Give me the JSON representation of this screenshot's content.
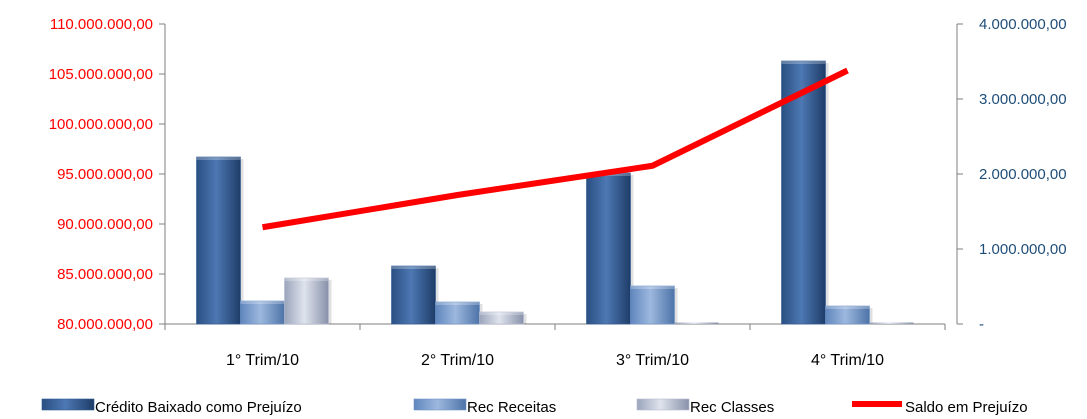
{
  "chart_data": {
    "type": "bar",
    "categories": [
      "1° Trim/10",
      "2° Trim/10",
      "3° Trim/10",
      "4° Trim/10"
    ],
    "series": [
      {
        "name": "Crédito Baixado como Prejuízo",
        "axis": "left",
        "type": "bar",
        "color": "#2f5a93",
        "values": [
          96700000,
          85800000,
          95100000,
          106300000
        ]
      },
      {
        "name": "Rec Receitas",
        "axis": "left",
        "type": "bar",
        "color": "#6f94c8",
        "values": [
          82300000,
          82200000,
          83800000,
          81800000
        ]
      },
      {
        "name": "Rec Classes",
        "axis": "left",
        "type": "bar",
        "color": "#b4bcd0",
        "values": [
          84600000,
          81200000,
          80000000,
          80000000
        ]
      },
      {
        "name": "Saldo em Prejuízo",
        "axis": "right",
        "type": "line",
        "color": "#ff0000",
        "values": [
          1290000,
          1720000,
          2110000,
          3380000
        ]
      }
    ],
    "left_axis": {
      "ylim": [
        80000000,
        110000000
      ],
      "ticks": [
        80000000,
        85000000,
        90000000,
        95000000,
        100000000,
        105000000,
        110000000
      ],
      "tick_labels": [
        "80.000.000,00",
        "85.000.000,00",
        "90.000.000,00",
        "95.000.000,00",
        "100.000.000,00",
        "105.000.000,00",
        "110.000.000,00"
      ],
      "color": "#ff0000"
    },
    "right_axis": {
      "ylim": [
        0,
        4000000
      ],
      "ticks": [
        0,
        1000000,
        2000000,
        3000000,
        4000000
      ],
      "tick_labels": [
        "-",
        "1.000.000,00",
        "2.000.000,00",
        "3.000.000,00",
        "4.000.000,00"
      ],
      "color": "#1f4e79"
    },
    "grid": false,
    "legend_position": "bottom"
  }
}
